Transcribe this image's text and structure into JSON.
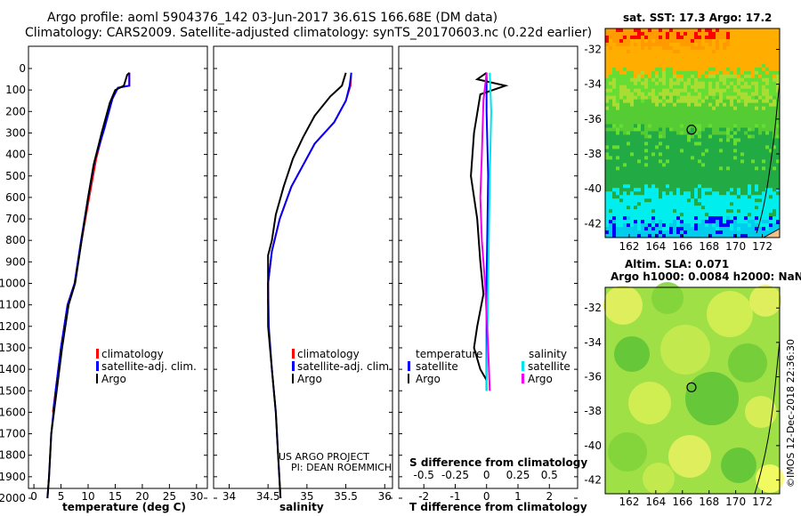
{
  "title_line1": "Argo profile: aoml 5904376_142 03-Jun-2017 36.61S 166.68E (DM data)",
  "title_line2": "Climatology: CARS2009. Satellite-adjusted climatology: synTS_20170603.nc (0.22d earlier)",
  "colors": {
    "clim": "#ff0000",
    "sat": "#0000ff",
    "argo": "#000000",
    "sal_sat": "#00e5ee",
    "sal_argo": "#ee00ee"
  },
  "chart_data": [
    {
      "type": "line",
      "panel": "temperature",
      "xlabel": "temperature (deg C)",
      "xlim": [
        -1,
        32
      ],
      "xticks": [
        "0",
        "5",
        "10",
        "15",
        "20",
        "25",
        "30"
      ],
      "ylim": [
        0,
        2050
      ],
      "yticks": [
        "0",
        "100",
        "200",
        "300",
        "400",
        "500",
        "600",
        "700",
        "800",
        "900",
        "1000",
        "1100",
        "1200",
        "1300",
        "1400",
        "1500",
        "1600",
        "1700",
        "1800",
        "1900",
        "2000"
      ],
      "legend": [
        "climatology",
        "satellite-adj. clim.",
        "Argo"
      ],
      "series": [
        {
          "name": "climatology",
          "color": "#ff0000",
          "points": [
            [
              17.6,
              20
            ],
            [
              17.6,
              80
            ],
            [
              15.5,
              90
            ],
            [
              14.5,
              140
            ],
            [
              13,
              270
            ],
            [
              11.5,
              420
            ],
            [
              10.2,
              600
            ],
            [
              8.8,
              800
            ],
            [
              7.5,
              1000
            ],
            [
              6.2,
              1100
            ],
            [
              5,
              1300
            ],
            [
              4,
              1500
            ],
            [
              3.5,
              1600
            ]
          ]
        },
        {
          "name": "satellite-adj. clim.",
          "color": "#0000ff",
          "points": [
            [
              17.6,
              20
            ],
            [
              17.6,
              80
            ],
            [
              15.5,
              90
            ],
            [
              14.5,
              140
            ],
            [
              13,
              280
            ],
            [
              11.2,
              430
            ],
            [
              10,
              600
            ],
            [
              8.7,
              800
            ],
            [
              7.5,
              1000
            ],
            [
              6.2,
              1100
            ],
            [
              5,
              1300
            ],
            [
              4,
              1500
            ],
            [
              3.2,
              1700
            ],
            [
              2.8,
              1900
            ],
            [
              2.5,
              2000
            ]
          ]
        },
        {
          "name": "Argo",
          "color": "#000000",
          "points": [
            [
              17.6,
              20
            ],
            [
              17.2,
              30
            ],
            [
              16.6,
              80
            ],
            [
              15,
              100
            ],
            [
              14,
              160
            ],
            [
              12.5,
              300
            ],
            [
              11,
              450
            ],
            [
              10,
              600
            ],
            [
              8.8,
              800
            ],
            [
              7.6,
              1000
            ],
            [
              6.4,
              1100
            ],
            [
              5.2,
              1300
            ],
            [
              4.2,
              1500
            ],
            [
              3.2,
              1700
            ],
            [
              2.8,
              1900
            ],
            [
              2.5,
              2000
            ]
          ]
        }
      ]
    },
    {
      "type": "line",
      "panel": "salinity",
      "xlabel": "salinity",
      "xlim": [
        33.8,
        36.1
      ],
      "xticks": [
        "34",
        "34.5",
        "35",
        "35.5",
        "36"
      ],
      "ylim": [
        0,
        2050
      ],
      "legend": [
        "climatology",
        "satellite-adj. clim.",
        "Argo"
      ],
      "credit_line1": "US ARGO PROJECT",
      "credit_line2": "PI: DEAN ROEMMICH",
      "series": [
        {
          "name": "climatology",
          "color": "#ff0000",
          "points": [
            [
              35.57,
              20
            ],
            [
              35.56,
              80
            ],
            [
              35.5,
              150
            ],
            [
              35.35,
              250
            ],
            [
              35.1,
              350
            ],
            [
              34.95,
              450
            ],
            [
              34.8,
              550
            ],
            [
              34.65,
              700
            ],
            [
              34.55,
              850
            ],
            [
              34.5,
              1000
            ],
            [
              34.5,
              1100
            ]
          ]
        },
        {
          "name": "satellite-adj. clim.",
          "color": "#0000ff",
          "points": [
            [
              35.57,
              20
            ],
            [
              35.55,
              80
            ],
            [
              35.5,
              150
            ],
            [
              35.35,
              250
            ],
            [
              35.1,
              350
            ],
            [
              34.95,
              450
            ],
            [
              34.8,
              550
            ],
            [
              34.65,
              700
            ],
            [
              34.55,
              850
            ],
            [
              34.5,
              1000
            ],
            [
              34.51,
              1200
            ],
            [
              34.55,
              1400
            ],
            [
              34.6,
              1600
            ],
            [
              34.63,
              1800
            ],
            [
              34.66,
              2000
            ]
          ]
        },
        {
          "name": "Argo",
          "color": "#000000",
          "points": [
            [
              35.5,
              20
            ],
            [
              35.45,
              80
            ],
            [
              35.3,
              130
            ],
            [
              35.1,
              220
            ],
            [
              34.95,
              320
            ],
            [
              34.82,
              420
            ],
            [
              34.7,
              550
            ],
            [
              34.6,
              680
            ],
            [
              34.55,
              800
            ],
            [
              34.5,
              870
            ],
            [
              34.5,
              1000
            ],
            [
              34.5,
              1200
            ],
            [
              34.55,
              1400
            ],
            [
              34.6,
              1600
            ],
            [
              34.63,
              1800
            ],
            [
              34.66,
              2000
            ]
          ]
        }
      ]
    },
    {
      "type": "line",
      "panel": "difference",
      "xlabel": "T difference from climatology",
      "xlabel2": "S difference from climatology",
      "xlim": [
        -2.8,
        2.9
      ],
      "xticks": [
        "-2",
        "-1",
        "0",
        "1",
        "2"
      ],
      "xticks2": [
        "-0.5",
        "-0.25",
        "0",
        "0.25",
        "0.5"
      ],
      "ylim": [
        0,
        2050
      ],
      "legend_temp_title": "temperature",
      "legend_sal_title": "salinity",
      "legend_temp": [
        "satellite",
        "Argo"
      ],
      "legend_sal": [
        "satellite",
        "Argo"
      ],
      "series": [
        {
          "name": "T satellite",
          "color": "#0000ff",
          "points": [
            [
              0,
              20
            ],
            [
              0,
              200
            ],
            [
              0.05,
              500
            ],
            [
              0,
              1000
            ],
            [
              0,
              1500
            ]
          ]
        },
        {
          "name": "T Argo",
          "color": "#000000",
          "points": [
            [
              0,
              20
            ],
            [
              -0.3,
              50
            ],
            [
              0.6,
              80
            ],
            [
              -0.2,
              120
            ],
            [
              -0.4,
              300
            ],
            [
              -0.5,
              500
            ],
            [
              -0.3,
              700
            ],
            [
              -0.2,
              900
            ],
            [
              -0.1,
              1050
            ],
            [
              -0.3,
              1200
            ],
            [
              -0.4,
              1300
            ],
            [
              -0.2,
              1400
            ],
            [
              0,
              1450
            ]
          ]
        },
        {
          "name": "S satellite",
          "color": "#00e5ee",
          "points": [
            [
              0.1,
              20
            ],
            [
              0.15,
              200
            ],
            [
              0.1,
              500
            ],
            [
              0.05,
              1000
            ],
            [
              0,
              1500
            ]
          ]
        },
        {
          "name": "S Argo",
          "color": "#ee00ee",
          "points": [
            [
              0,
              20
            ],
            [
              -0.1,
              150
            ],
            [
              -0.15,
              400
            ],
            [
              -0.2,
              600
            ],
            [
              -0.15,
              800
            ],
            [
              -0.05,
              1000
            ],
            [
              0.05,
              1300
            ],
            [
              0.1,
              1500
            ]
          ]
        }
      ]
    },
    {
      "type": "heatmap",
      "panel": "map-sst",
      "title": "sat. SST: 17.3 Argo: 17.2",
      "xticks": [
        "162",
        "164",
        "166",
        "168",
        "170",
        "172"
      ],
      "yticks": [
        "-32",
        "-34",
        "-36",
        "-38",
        "-40",
        "-42"
      ],
      "marker": [
        166.68,
        -36.61
      ]
    },
    {
      "type": "heatmap",
      "panel": "map-sla",
      "title_line1": "Altim. SLA: 0.071",
      "title_line2": "Argo h1000: 0.0084 h2000: NaN",
      "xticks": [
        "162",
        "164",
        "166",
        "168",
        "170",
        "172"
      ],
      "yticks": [
        "-32",
        "-34",
        "-36",
        "-38",
        "-40",
        "-42"
      ],
      "marker": [
        166.68,
        -36.61
      ]
    }
  ],
  "footer_stamp": "©IMOS 12-Dec-2018 22:36:30"
}
